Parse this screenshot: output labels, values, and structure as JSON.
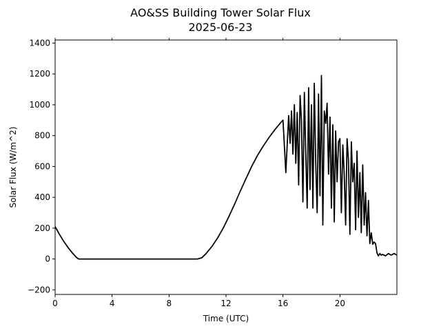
{
  "chart_data": {
    "type": "line",
    "title": "AO&SS Building Tower Solar Flux",
    "subtitle": "2025-06-23",
    "xlabel": "Time (UTC)",
    "ylabel": "Solar Flux (W/m^2)",
    "xlim": [
      0,
      24
    ],
    "ylim": [
      -230,
      1420
    ],
    "xticks": [
      0,
      4,
      8,
      12,
      16,
      20
    ],
    "yticks": [
      -200,
      0,
      200,
      400,
      600,
      800,
      1000,
      1200,
      1400
    ],
    "grid": false,
    "line_color": "#000000",
    "series": [
      {
        "x": [
          0,
          0.3,
          0.6,
          0.9,
          1.2,
          1.5,
          1.65,
          2.0,
          4.0,
          6.0,
          8.0,
          10.0,
          10.3,
          10.6,
          11.0,
          11.4,
          11.8,
          12.2,
          12.6,
          13.0,
          13.4,
          13.8,
          14.2,
          14.6,
          15.0,
          15.4,
          15.8,
          16.0,
          16.2,
          16.4,
          16.5,
          16.6,
          16.7,
          16.8,
          16.9,
          17.0,
          17.1,
          17.2,
          17.3,
          17.4,
          17.5,
          17.6,
          17.7,
          17.8,
          17.9,
          18.0,
          18.1,
          18.2,
          18.3,
          18.4,
          18.5,
          18.6,
          18.7,
          18.8,
          18.9,
          19.0,
          19.1,
          19.2,
          19.3,
          19.4,
          19.5,
          19.6,
          19.7,
          19.8,
          19.9,
          20.0,
          20.1,
          20.2,
          20.3,
          20.4,
          20.5,
          20.6,
          20.7,
          20.8,
          20.9,
          21.0,
          21.1,
          21.2,
          21.3,
          21.4,
          21.5,
          21.6,
          21.7,
          21.8,
          21.9,
          22.0,
          22.1,
          22.2,
          22.3,
          22.4,
          22.5,
          22.6,
          22.7,
          22.8,
          22.9,
          23.0,
          23.2,
          23.4,
          23.6,
          23.8,
          24.0
        ],
        "y": [
          210,
          160,
          115,
          75,
          40,
          10,
          0,
          0,
          0,
          0,
          0,
          0,
          8,
          35,
          80,
          135,
          200,
          275,
          355,
          440,
          520,
          600,
          670,
          730,
          785,
          835,
          880,
          900,
          560,
          930,
          750,
          960,
          680,
          1000,
          620,
          950,
          480,
          1060,
          900,
          370,
          1080,
          700,
          330,
          1110,
          450,
          1000,
          330,
          1140,
          620,
          300,
          1070,
          410,
          1190,
          220,
          960,
          880,
          1010,
          550,
          920,
          330,
          870,
          240,
          830,
          500,
          760,
          780,
          300,
          740,
          560,
          220,
          780,
          640,
          160,
          760,
          500,
          620,
          190,
          700,
          270,
          560,
          170,
          610,
          220,
          430,
          150,
          380,
          100,
          170,
          95,
          110,
          100,
          40,
          20,
          35,
          25,
          30,
          20,
          35,
          25,
          35,
          25
        ]
      }
    ]
  }
}
